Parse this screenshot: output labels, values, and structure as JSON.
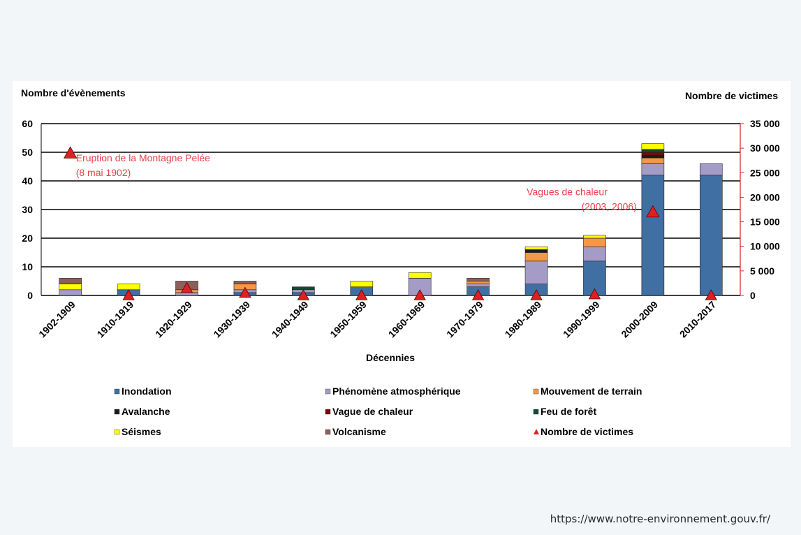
{
  "source_url": "https://www.notre-environnement.gouv.fr/",
  "chart_data": {
    "type": "bar",
    "stacked": true,
    "xlabel": "Décennies",
    "ylabel_left": "Nombre d'évènements",
    "ylabel_right": "Nombre de victimes",
    "ylim_left": [
      0,
      60
    ],
    "ylim_right": [
      0,
      35000
    ],
    "yticks_left": [
      "0",
      "10",
      "20",
      "30",
      "40",
      "50",
      "60"
    ],
    "yticks_right": [
      "0",
      "5 000",
      "10 000",
      "15 000",
      "20 000",
      "25 000",
      "30 000",
      "35 000"
    ],
    "grid": true,
    "legend_position": "bottom",
    "categories": [
      "1902-1909",
      "1910-1919",
      "1920-1929",
      "1930-1939",
      "1940-1949",
      "1950-1959",
      "1960-1969",
      "1970-1979",
      "1980-1989",
      "1990-1999",
      "2000-2009",
      "2010-2017"
    ],
    "series": [
      {
        "name": "Inondation",
        "color": "#3f6fa3",
        "values": [
          0,
          2,
          0,
          1,
          1,
          3,
          0,
          3,
          4,
          12,
          42,
          42
        ]
      },
      {
        "name": "Phénomène atmosphérique",
        "color": "#a49cc6",
        "values": [
          2,
          0,
          1,
          1,
          1,
          0,
          6,
          1,
          8,
          5,
          4,
          4
        ]
      },
      {
        "name": "Mouvement de terrain",
        "color": "#f79646",
        "values": [
          0,
          0,
          1,
          2,
          0,
          0,
          0,
          1,
          3,
          3,
          2,
          0
        ]
      },
      {
        "name": "Avalanche",
        "color": "#1a1a1a",
        "values": [
          0,
          0,
          0,
          0,
          0,
          0,
          0,
          0,
          1,
          0,
          1,
          0
        ]
      },
      {
        "name": "Vague de chaleur",
        "color": "#7a0a0a",
        "values": [
          0,
          0,
          0,
          0,
          0,
          0,
          0,
          0,
          0,
          0,
          1,
          0
        ]
      },
      {
        "name": "Feu de forêt",
        "color": "#0f4d2f",
        "values": [
          0,
          0,
          0,
          0,
          1,
          0,
          0,
          0,
          0,
          0,
          1,
          0
        ]
      },
      {
        "name": "Séismes",
        "color": "#ffff00",
        "values": [
          2,
          2,
          0,
          0,
          0,
          2,
          2,
          0,
          1,
          1,
          2,
          0
        ]
      },
      {
        "name": "Volcanisme",
        "color": "#8c5f5a",
        "values": [
          2,
          0,
          3,
          1,
          0,
          0,
          0,
          1,
          0,
          0,
          0,
          0
        ]
      }
    ],
    "victims": {
      "name": "Nombre de victimes",
      "color": "#e02020",
      "values": [
        29000,
        0,
        1500,
        500,
        0,
        0,
        0,
        0,
        0,
        200,
        17000,
        0
      ]
    },
    "annotations": [
      {
        "lines": [
          "Eruption de la Montagne Pelée",
          "(8 mai 1902)"
        ],
        "category": "1902-1909",
        "align": "start"
      },
      {
        "lines": [
          "Vagues de chaleur",
          "(2003, 2006)"
        ],
        "category": "2000-2009",
        "align": "end"
      }
    ]
  }
}
